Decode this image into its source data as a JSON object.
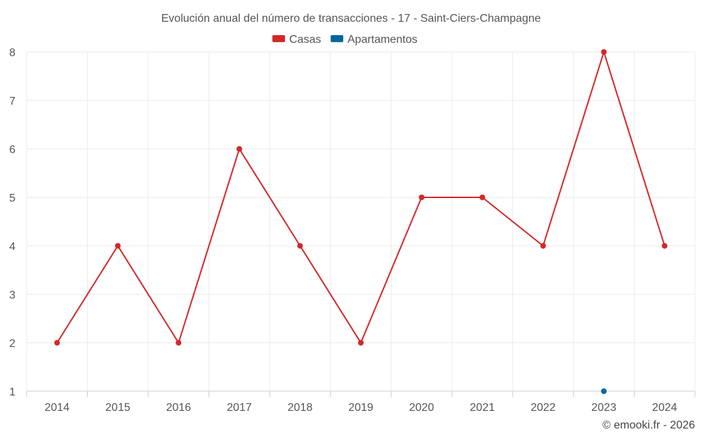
{
  "chart_data": {
    "type": "line",
    "title": "Evolución anual del número de transacciones - 17 - Saint-Ciers-Champagne",
    "categories": [
      "2014",
      "2015",
      "2016",
      "2017",
      "2018",
      "2019",
      "2020",
      "2021",
      "2022",
      "2023",
      "2024"
    ],
    "series": [
      {
        "name": "Casas",
        "color": "#d42828",
        "values": [
          2,
          4,
          2,
          6,
          4,
          2,
          5,
          5,
          4,
          8,
          4
        ]
      },
      {
        "name": "Apartamentos",
        "color": "#04679c",
        "values": [
          null,
          null,
          null,
          null,
          null,
          null,
          null,
          null,
          null,
          1,
          null
        ]
      }
    ],
    "yticks": [
      1,
      2,
      3,
      4,
      5,
      6,
      7,
      8
    ],
    "ylim": [
      1,
      8
    ],
    "grid": true,
    "legend": "top-center",
    "credits": "© emooki.fr - 2026"
  }
}
